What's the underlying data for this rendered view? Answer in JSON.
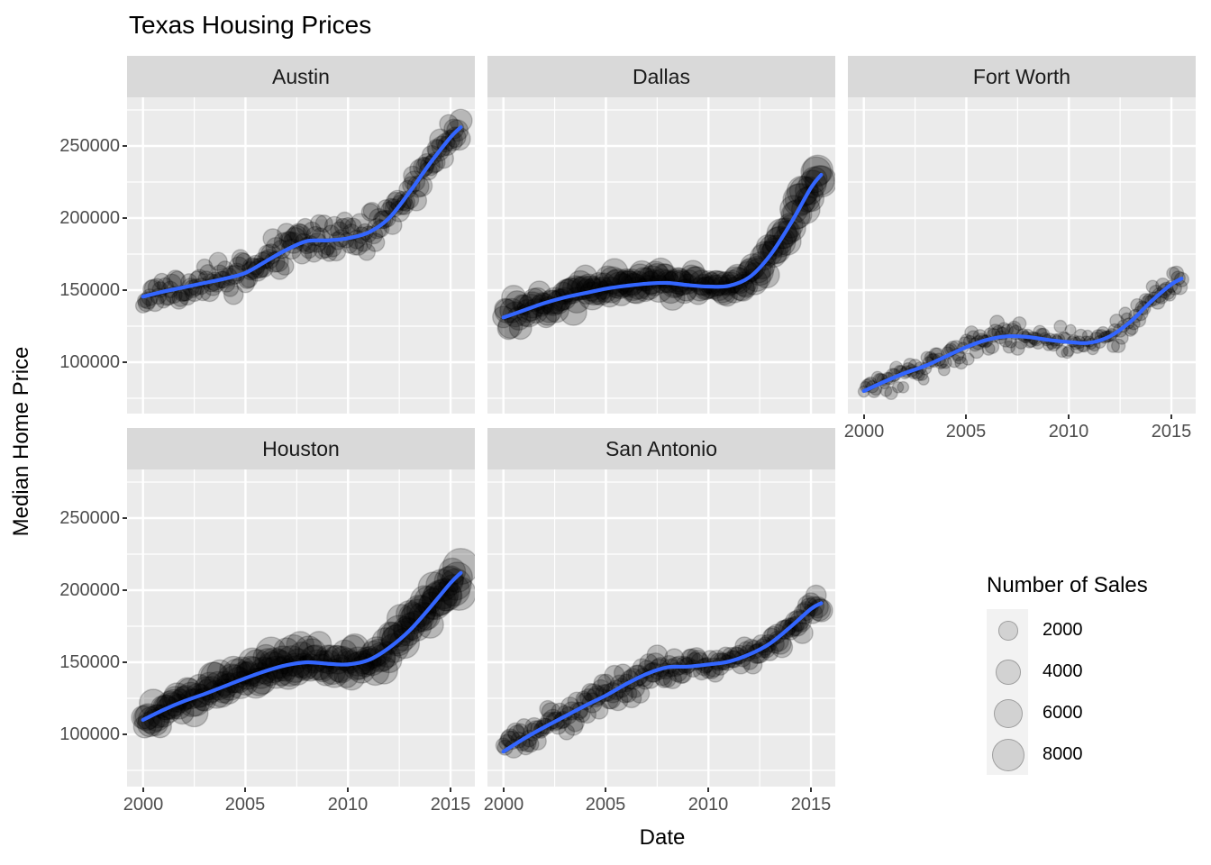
{
  "title": "Texas Housing Prices",
  "x_axis": {
    "title": "Date",
    "tick_labels": [
      "2000",
      "2005",
      "2010",
      "2015"
    ],
    "tick_values": [
      2000,
      2005,
      2010,
      2015
    ]
  },
  "y_axis": {
    "title": "Median Home Price",
    "tick_labels": [
      "250000",
      "200000",
      "150000",
      "100000"
    ],
    "tick_values": [
      250000,
      200000,
      150000,
      100000
    ]
  },
  "legend": {
    "title": "Number of Sales",
    "entries": [
      {
        "label": "2000",
        "value": 2000
      },
      {
        "label": "4000",
        "value": 4000
      },
      {
        "label": "6000",
        "value": 6000
      },
      {
        "label": "8000",
        "value": 8000
      }
    ]
  },
  "style": {
    "smooth_line_color": "#3366FF",
    "panel_bg": "#EBEBEB",
    "strip_bg": "#D9D9D9",
    "grid_color": "#FFFFFF",
    "tick_label_color": "#4D4D4D",
    "tick_mark_color": "#333333",
    "point_fill": "rgba(0,0,0,0.22)",
    "point_stroke": "rgba(0,0,0,0.20)",
    "legend_key_bg": "#F2F2F2"
  },
  "chart_data": {
    "type": "scatter",
    "title": "Texas Housing Prices",
    "xlabel": "Date",
    "ylabel": "Median Home Price",
    "legend_title": "Number of Sales",
    "x_data_range": [
      2000,
      2015.5
    ],
    "x_domain": [
      1999.22,
      2016.18
    ],
    "y_domain": [
      65000,
      283750
    ],
    "x_major_gridlines": [
      2000,
      2005,
      2010,
      2015
    ],
    "x_minor_gridlines": [
      2002.5,
      2007.5,
      2012.5
    ],
    "y_major_gridlines": [
      100000,
      150000,
      200000,
      250000
    ],
    "y_minor_gridlines": [
      75000,
      125000,
      175000,
      225000,
      275000
    ],
    "point_frequency": "monthly",
    "points_per_facet": 187,
    "size_scale": {
      "r_intercept": 2.1,
      "r_coef": 0.17,
      "legend_sizes": [
        2000,
        4000,
        6000,
        8000
      ]
    },
    "smooth_years": [
      2000,
      2001,
      2002,
      2003,
      2004,
      2005,
      2006,
      2007,
      2008,
      2009,
      2010,
      2011,
      2012,
      2013,
      2014,
      2015,
      2015.5
    ],
    "sales_years": [
      2000,
      2003,
      2006,
      2007,
      2009,
      2011,
      2013,
      2015.5
    ],
    "facets": [
      {
        "name": "Austin",
        "row": 0,
        "col": 0,
        "seed": 11,
        "price_noise_sd": 5500,
        "smooth_prices": [
          145500,
          149000,
          152000,
          155000,
          158000,
          162000,
          170000,
          178000,
          184000,
          184500,
          186000,
          190000,
          200000,
          218000,
          238000,
          256000,
          263000
        ],
        "sales_values": [
          1650,
          1800,
          2400,
          2500,
          1850,
          1900,
          2500,
          2950
        ]
      },
      {
        "name": "Dallas",
        "row": 0,
        "col": 1,
        "seed": 22,
        "price_noise_sd": 4800,
        "smooth_prices": [
          131000,
          136000,
          141000,
          145000,
          148000,
          151000,
          153000,
          154500,
          155000,
          153500,
          152500,
          153000,
          159000,
          174000,
          196000,
          221000,
          230000
        ],
        "sales_values": [
          3900,
          4300,
          5100,
          5000,
          4000,
          4100,
          5600,
          6800
        ]
      },
      {
        "name": "Fort Worth",
        "row": 0,
        "col": 2,
        "seed": 33,
        "price_noise_sd": 4500,
        "smooth_prices": [
          80000,
          86500,
          92500,
          97500,
          104000,
          110500,
          115500,
          118000,
          117500,
          115500,
          114000,
          113500,
          118000,
          128000,
          142000,
          154000,
          158000
        ],
        "sales_values": [
          650,
          720,
          900,
          880,
          680,
          650,
          800,
          1020
        ]
      },
      {
        "name": "Houston",
        "row": 1,
        "col": 0,
        "seed": 44,
        "price_noise_sd": 5600,
        "smooth_prices": [
          110000,
          117000,
          123000,
          128000,
          133500,
          139000,
          144000,
          148000,
          150000,
          149000,
          148500,
          151500,
          160000,
          172000,
          188000,
          205000,
          212000
        ],
        "sales_values": [
          4500,
          5000,
          6200,
          6300,
          4900,
          4900,
          6700,
          7800
        ]
      },
      {
        "name": "San Antonio",
        "row": 1,
        "col": 1,
        "seed": 55,
        "price_noise_sd": 4800,
        "smooth_prices": [
          88000,
          97000,
          105000,
          112500,
          120000,
          127000,
          135000,
          142000,
          146500,
          147000,
          148500,
          150500,
          155500,
          163000,
          174500,
          187000,
          191000
        ],
        "sales_values": [
          1650,
          1900,
          2400,
          2450,
          1900,
          1850,
          2300,
          2850
        ]
      }
    ]
  }
}
